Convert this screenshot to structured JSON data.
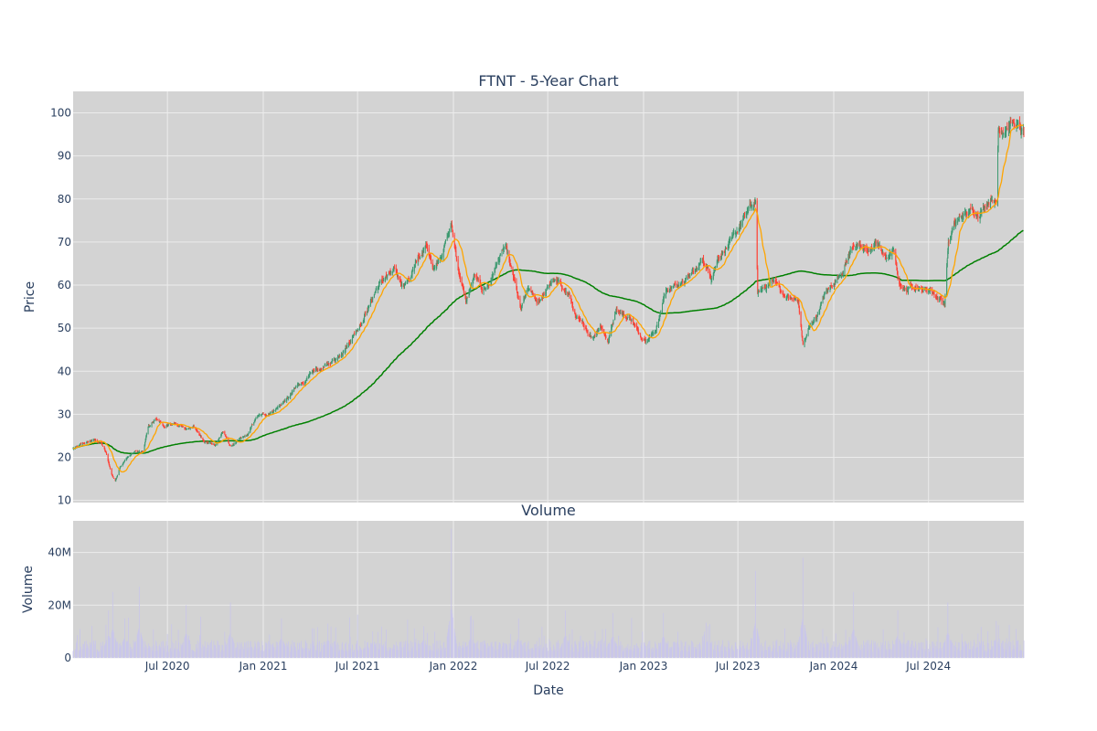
{
  "chart_data": {
    "type": "candlestick",
    "title": "FTNT - 5-Year Chart",
    "colors": {
      "plot_bg": "#d3d3d3",
      "grid": "#ececec",
      "up": "#3d9970",
      "down": "#ff4136",
      "ma_short": "#ffa500",
      "ma_long": "#008000",
      "volume_bar": "#c9c6ea",
      "text": "#2a3f5f"
    },
    "price_panel": {
      "ylabel": "Price",
      "ylim": [
        9.5,
        105
      ],
      "yticks": [
        10,
        20,
        30,
        40,
        50,
        60,
        70,
        80,
        90,
        100
      ],
      "price_path": [
        [
          "2020-01-02",
          22
        ],
        [
          "2020-01-20",
          23
        ],
        [
          "2020-02-10",
          24
        ],
        [
          "2020-02-24",
          23.5
        ],
        [
          "2020-03-05",
          21
        ],
        [
          "2020-03-16",
          16
        ],
        [
          "2020-03-23",
          14.5
        ],
        [
          "2020-04-01",
          18
        ],
        [
          "2020-04-15",
          20
        ],
        [
          "2020-05-01",
          21.5
        ],
        [
          "2020-05-15",
          21
        ],
        [
          "2020-05-25",
          27
        ],
        [
          "2020-06-10",
          29
        ],
        [
          "2020-06-25",
          27
        ],
        [
          "2020-07-15",
          28
        ],
        [
          "2020-08-05",
          26.5
        ],
        [
          "2020-08-20",
          27.5
        ],
        [
          "2020-09-10",
          23.5
        ],
        [
          "2020-10-01",
          23
        ],
        [
          "2020-10-15",
          26
        ],
        [
          "2020-10-30",
          22.5
        ],
        [
          "2020-11-15",
          24
        ],
        [
          "2020-12-01",
          25
        ],
        [
          "2020-12-20",
          29.5
        ],
        [
          "2021-01-10",
          30
        ],
        [
          "2021-02-01",
          32
        ],
        [
          "2021-02-20",
          34
        ],
        [
          "2021-03-10",
          37
        ],
        [
          "2021-03-25",
          38
        ],
        [
          "2021-04-10",
          40
        ],
        [
          "2021-05-01",
          41
        ],
        [
          "2021-05-20",
          43
        ],
        [
          "2021-06-10",
          46
        ],
        [
          "2021-06-25",
          49
        ],
        [
          "2021-07-10",
          52
        ],
        [
          "2021-07-25",
          56
        ],
        [
          "2021-08-10",
          60
        ],
        [
          "2021-08-25",
          62
        ],
        [
          "2021-09-10",
          63
        ],
        [
          "2021-09-25",
          60
        ],
        [
          "2021-10-10",
          62
        ],
        [
          "2021-10-25",
          66
        ],
        [
          "2021-11-10",
          69
        ],
        [
          "2021-11-25",
          64
        ],
        [
          "2021-12-10",
          68
        ],
        [
          "2021-12-28",
          74
        ],
        [
          "2022-01-10",
          64
        ],
        [
          "2022-01-25",
          56
        ],
        [
          "2022-02-10",
          62
        ],
        [
          "2022-02-25",
          59
        ],
        [
          "2022-03-10",
          60
        ],
        [
          "2022-03-25",
          65
        ],
        [
          "2022-04-10",
          69
        ],
        [
          "2022-04-25",
          62
        ],
        [
          "2022-05-10",
          54
        ],
        [
          "2022-05-25",
          59
        ],
        [
          "2022-06-10",
          56
        ],
        [
          "2022-06-25",
          58
        ],
        [
          "2022-07-10",
          61
        ],
        [
          "2022-07-25",
          60
        ],
        [
          "2022-08-10",
          58
        ],
        [
          "2022-08-25",
          52
        ],
        [
          "2022-09-10",
          50
        ],
        [
          "2022-09-25",
          48
        ],
        [
          "2022-10-10",
          51
        ],
        [
          "2022-10-25",
          47
        ],
        [
          "2022-11-10",
          55
        ],
        [
          "2022-11-25",
          53
        ],
        [
          "2022-12-10",
          52
        ],
        [
          "2022-12-25",
          48
        ],
        [
          "2023-01-10",
          48
        ],
        [
          "2023-01-25",
          50
        ],
        [
          "2023-02-10",
          58
        ],
        [
          "2023-02-25",
          60
        ],
        [
          "2023-03-10",
          60
        ],
        [
          "2023-03-25",
          62
        ],
        [
          "2023-04-10",
          63
        ],
        [
          "2023-04-25",
          66
        ],
        [
          "2023-05-10",
          62
        ],
        [
          "2023-05-25",
          67
        ],
        [
          "2023-06-10",
          69
        ],
        [
          "2023-06-25",
          71
        ],
        [
          "2023-07-10",
          75
        ],
        [
          "2023-07-25",
          78
        ],
        [
          "2023-08-04",
          79
        ],
        [
          "2023-08-08",
          58
        ],
        [
          "2023-08-25",
          60
        ],
        [
          "2023-09-10",
          61
        ],
        [
          "2023-09-25",
          58
        ],
        [
          "2023-10-10",
          57
        ],
        [
          "2023-10-25",
          56
        ],
        [
          "2023-11-03",
          46
        ],
        [
          "2023-11-15",
          50
        ],
        [
          "2023-11-30",
          53
        ],
        [
          "2023-12-15",
          58
        ],
        [
          "2023-12-30",
          60
        ],
        [
          "2024-01-15",
          63
        ],
        [
          "2024-01-30",
          67
        ],
        [
          "2024-02-10",
          70
        ],
        [
          "2024-02-25",
          68
        ],
        [
          "2024-03-10",
          68
        ],
        [
          "2024-03-25",
          70
        ],
        [
          "2024-04-10",
          66
        ],
        [
          "2024-04-25",
          68
        ],
        [
          "2024-05-05",
          60
        ],
        [
          "2024-05-20",
          59
        ],
        [
          "2024-06-05",
          60
        ],
        [
          "2024-06-20",
          59
        ],
        [
          "2024-07-05",
          59
        ],
        [
          "2024-07-20",
          57
        ],
        [
          "2024-08-01",
          56
        ],
        [
          "2024-08-08",
          70
        ],
        [
          "2024-08-20",
          74
        ],
        [
          "2024-09-05",
          76
        ],
        [
          "2024-09-20",
          77
        ],
        [
          "2024-10-05",
          77
        ],
        [
          "2024-10-20",
          79
        ],
        [
          "2024-11-01",
          81
        ],
        [
          "2024-11-08",
          79
        ],
        [
          "2024-11-12",
          96
        ],
        [
          "2024-11-25",
          97
        ],
        [
          "2024-12-10",
          98
        ],
        [
          "2024-12-31",
          95
        ]
      ]
    },
    "volume_panel": {
      "title": "Volume",
      "ylabel": "Volume",
      "ylim": [
        0,
        52000000
      ],
      "yticks": [
        0,
        20000000,
        40000000
      ],
      "ytick_labels": [
        "0",
        "20M",
        "40M"
      ],
      "spikes": [
        [
          "2020-03-10",
          18000000
        ],
        [
          "2020-03-18",
          25000000
        ],
        [
          "2020-04-10",
          15000000
        ],
        [
          "2020-05-08",
          27000000
        ],
        [
          "2020-08-06",
          20000000
        ],
        [
          "2020-10-30",
          21000000
        ],
        [
          "2021-02-05",
          15000000
        ],
        [
          "2021-05-05",
          13000000
        ],
        [
          "2021-07-30",
          10000000
        ],
        [
          "2021-11-05",
          12000000
        ],
        [
          "2021-12-28",
          49000000
        ],
        [
          "2022-02-04",
          16000000
        ],
        [
          "2022-05-06",
          15000000
        ],
        [
          "2022-08-04",
          18000000
        ],
        [
          "2022-11-03",
          17000000
        ],
        [
          "2023-02-08",
          17000000
        ],
        [
          "2023-05-05",
          12000000
        ],
        [
          "2023-08-04",
          33000000
        ],
        [
          "2023-11-03",
          38000000
        ],
        [
          "2024-02-08",
          25000000
        ],
        [
          "2024-05-03",
          18000000
        ],
        [
          "2024-08-07",
          21000000
        ],
        [
          "2024-11-08",
          14000000
        ]
      ],
      "base_volume": 5000000
    },
    "xaxis": {
      "xlabel": "Date",
      "range": [
        "2020-01-02",
        "2024-12-31"
      ],
      "ticks": [
        {
          "date": "2020-07-01",
          "label": "Jul 2020"
        },
        {
          "date": "2021-01-01",
          "label": "Jan 2021"
        },
        {
          "date": "2021-07-01",
          "label": "Jul 2021"
        },
        {
          "date": "2022-01-01",
          "label": "Jan 2022"
        },
        {
          "date": "2022-07-01",
          "label": "Jul 2022"
        },
        {
          "date": "2023-01-01",
          "label": "Jan 2023"
        },
        {
          "date": "2023-07-01",
          "label": "Jul 2023"
        },
        {
          "date": "2024-01-01",
          "label": "Jan 2024"
        },
        {
          "date": "2024-07-01",
          "label": "Jul 2024"
        }
      ]
    },
    "moving_averages": [
      {
        "window": 20,
        "color": "#ffa500"
      },
      {
        "window": 200,
        "color": "#008000"
      }
    ]
  }
}
